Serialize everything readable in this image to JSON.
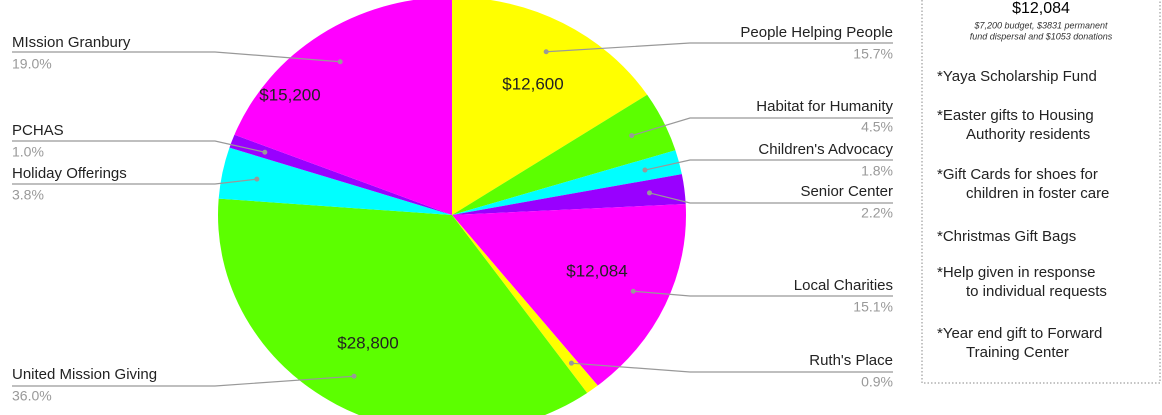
{
  "chart_data": {
    "type": "pie",
    "categories": [
      "People Helping People",
      "Habitat for Humanity",
      "Children's Advocacy",
      "Senior Center",
      "Local Charities",
      "Ruth's Place",
      "United Mission Giving",
      "Holiday Offerings",
      "PCHAS",
      "MIssion Granbury"
    ],
    "values": [
      15.7,
      4.5,
      1.8,
      2.2,
      15.1,
      0.9,
      36.0,
      3.8,
      1.0,
      19.0
    ],
    "value_labels": [
      "15.7%",
      "4.5%",
      "1.8%",
      "2.2%",
      "15.1%",
      "0.9%",
      "36.0%",
      "3.8%",
      "1.0%",
      "19.0%"
    ],
    "slice_labels": [
      "$12,600",
      null,
      null,
      null,
      "$12,084",
      null,
      "$28,800",
      null,
      null,
      "$15,200"
    ],
    "colors": [
      "#ffff00",
      "#5cff00",
      "#00ffff",
      "#9900ff",
      "#ff00ff",
      "#ffff00",
      "#5cff00",
      "#00ffff",
      "#9900ff",
      "#ff00ff"
    ]
  },
  "panel": {
    "title": "$12,084",
    "note_lines": [
      "$7,200 budget, $3831 permanent",
      "fund dispersal and $1053 donations"
    ],
    "items": [
      [
        "*Yaya Scholarship Fund"
      ],
      [
        "*Easter gifts to Housing",
        "Authority residents"
      ],
      [
        "*Gift Cards for shoes for",
        "children in foster care"
      ],
      [
        "*Christmas Gift Bags"
      ],
      [
        "*Help given in response",
        "to individual requests"
      ],
      [
        "*Year end gift to Forward",
        "Training Center"
      ]
    ]
  }
}
